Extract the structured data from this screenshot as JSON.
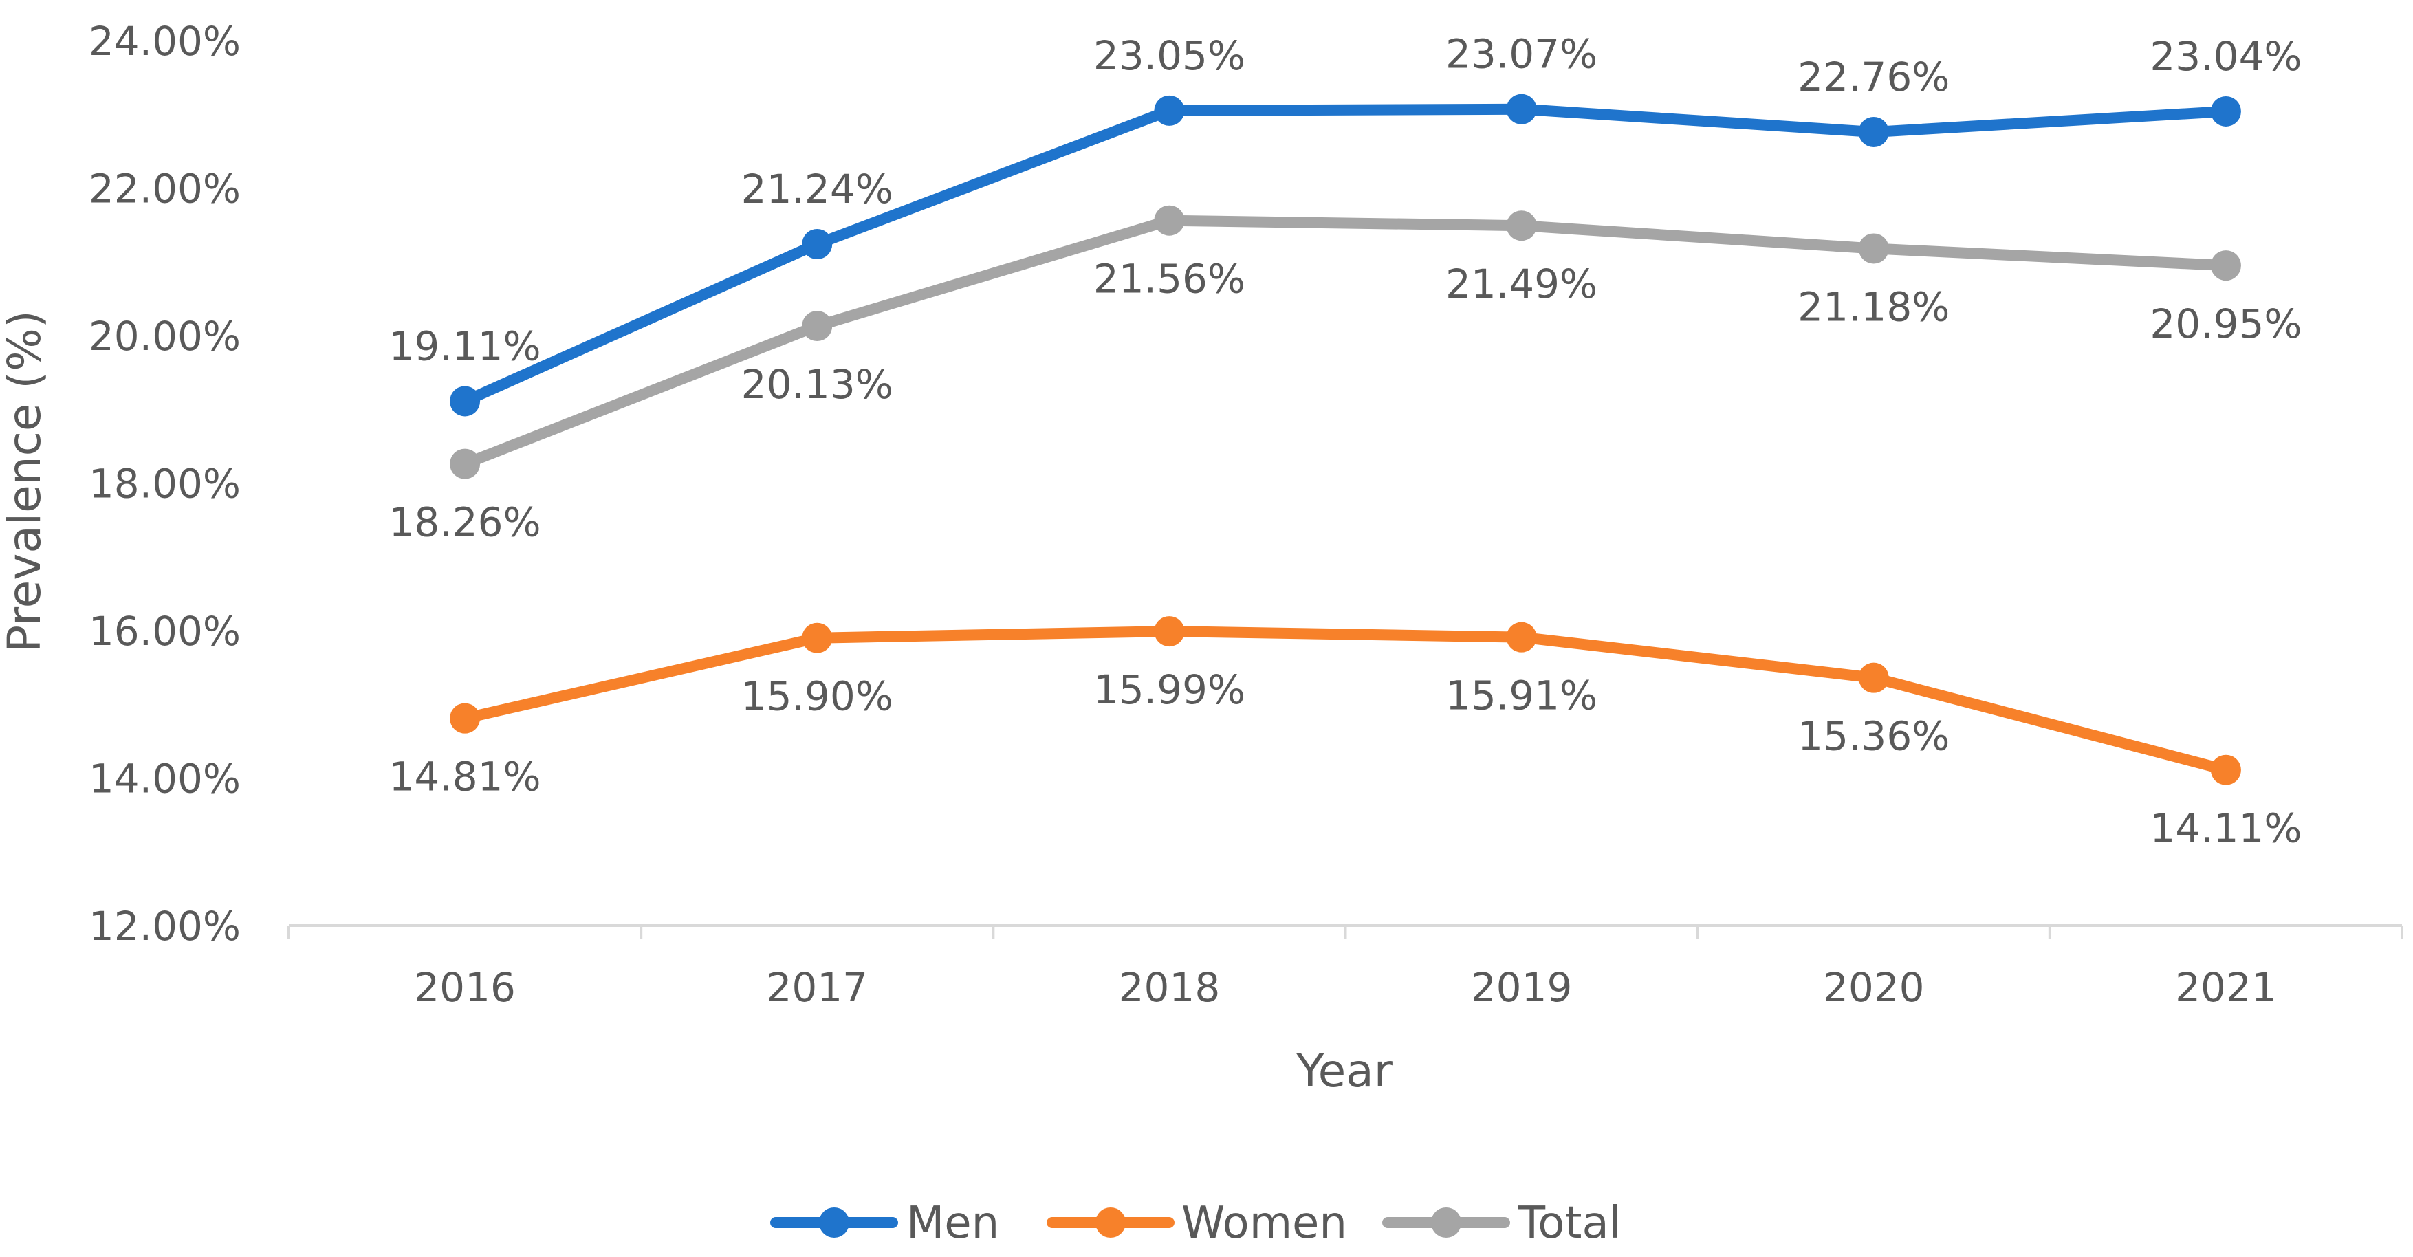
{
  "chart_data": {
    "type": "line",
    "title": "",
    "xlabel": "Year",
    "ylabel": "Prevalence (%)",
    "categories": [
      "2016",
      "2017",
      "2018",
      "2019",
      "2020",
      "2021"
    ],
    "ylim": [
      12,
      24
    ],
    "ytick_values": [
      12,
      14,
      16,
      18,
      20,
      22,
      24
    ],
    "ytick_labels": [
      "12.00%",
      "14.00%",
      "16.00%",
      "18.00%",
      "20.00%",
      "22.00%",
      "24.00%"
    ],
    "grid": false,
    "legend_position": "bottom",
    "series": [
      {
        "name": "Men",
        "color": "#1F74CC",
        "values": [
          19.11,
          21.24,
          23.05,
          23.07,
          22.76,
          23.04
        ],
        "labels": [
          "19.11%",
          "21.24%",
          "23.05%",
          "23.07%",
          "22.76%",
          "23.04%"
        ],
        "label_position": "above"
      },
      {
        "name": "Women",
        "color": "#F7812A",
        "values": [
          14.81,
          15.9,
          15.99,
          15.91,
          15.36,
          14.11
        ],
        "labels": [
          "14.81%",
          "15.90%",
          "15.99%",
          "15.91%",
          "15.36%",
          "14.11%"
        ],
        "label_position": "below"
      },
      {
        "name": "Total",
        "color": "#A5A5A5",
        "values": [
          18.26,
          20.13,
          21.56,
          21.49,
          21.18,
          20.95
        ],
        "labels": [
          "18.26%",
          "20.13%",
          "21.56%",
          "21.49%",
          "21.18%",
          "20.95%"
        ],
        "label_position": "below"
      }
    ]
  }
}
